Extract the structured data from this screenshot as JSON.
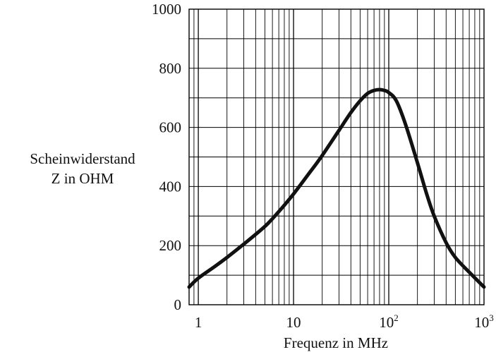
{
  "chart_data": {
    "type": "line",
    "title": "",
    "xlabel": "Frequenz in MHz",
    "ylabel_lines": [
      "Scheinwiderstand",
      "Z in OHM"
    ],
    "xscale": "log",
    "xlim": [
      0.8,
      1000
    ],
    "ylim": [
      0,
      1000
    ],
    "grid": true,
    "y_major_ticks": [
      0,
      200,
      400,
      600,
      800,
      1000
    ],
    "y_minor_ticks": [
      100,
      300,
      500,
      700,
      900
    ],
    "x_tick_labels": [
      {
        "value": 1,
        "base": "1",
        "exp": ""
      },
      {
        "value": 10,
        "base": "10",
        "exp": ""
      },
      {
        "value": 100,
        "base": "10",
        "exp": "2"
      },
      {
        "value": 1000,
        "base": "10",
        "exp": "3"
      }
    ],
    "series": [
      {
        "color": "#111111",
        "x": [
          0.8,
          1,
          1.5,
          2,
          3,
          5,
          7,
          10,
          15,
          20,
          30,
          40,
          50,
          60,
          70,
          80,
          90,
          100,
          120,
          150,
          200,
          250,
          300,
          400,
          500,
          700,
          1000
        ],
        "y": [
          60,
          90,
          130,
          160,
          205,
          265,
          315,
          375,
          450,
          505,
          590,
          650,
          690,
          715,
          725,
          728,
          725,
          718,
          690,
          610,
          480,
          375,
          300,
          210,
          160,
          110,
          60
        ]
      }
    ]
  }
}
